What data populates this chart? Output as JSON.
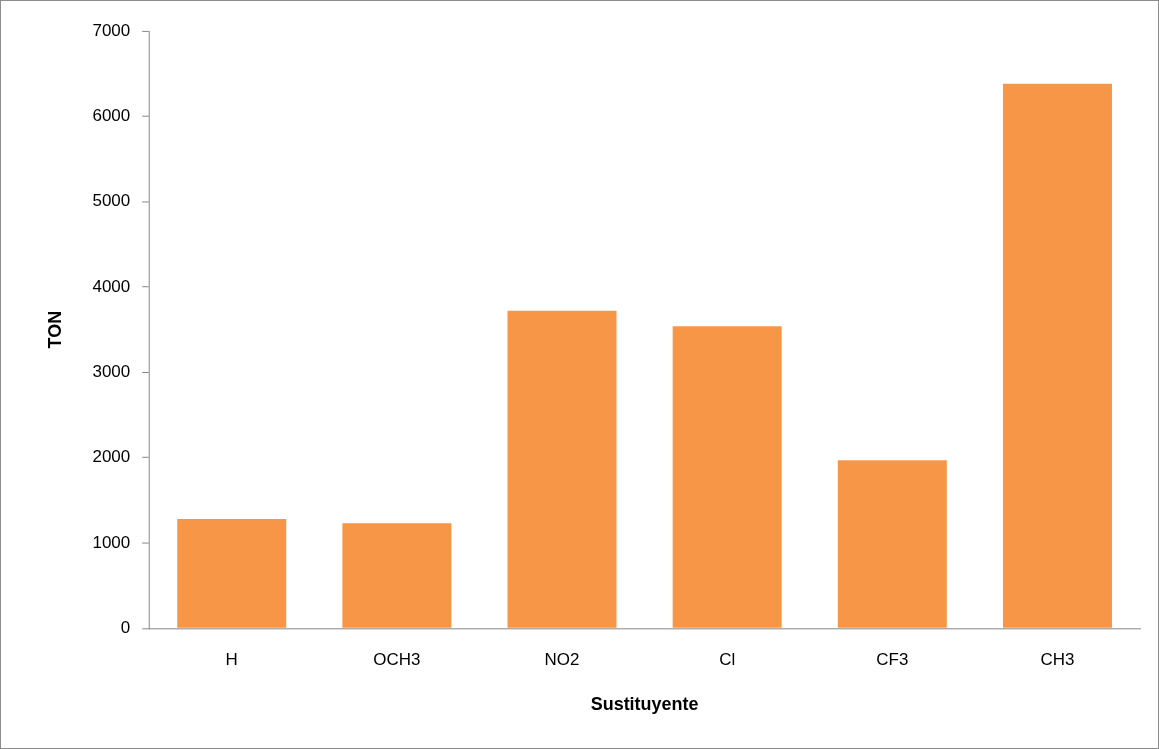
{
  "chart_data": {
    "type": "bar",
    "xlabel": "Sustituyente",
    "ylabel": "TON",
    "categories": [
      "H",
      "OCH3",
      "NO2",
      "Cl",
      "CF3",
      "CH3"
    ],
    "values": [
      1280,
      1230,
      3720,
      3540,
      1970,
      6380
    ],
    "color": "#f79646",
    "ylim": [
      0,
      7000
    ],
    "yticks": [
      0,
      1000,
      2000,
      3000,
      4000,
      5000,
      6000,
      7000
    ]
  }
}
